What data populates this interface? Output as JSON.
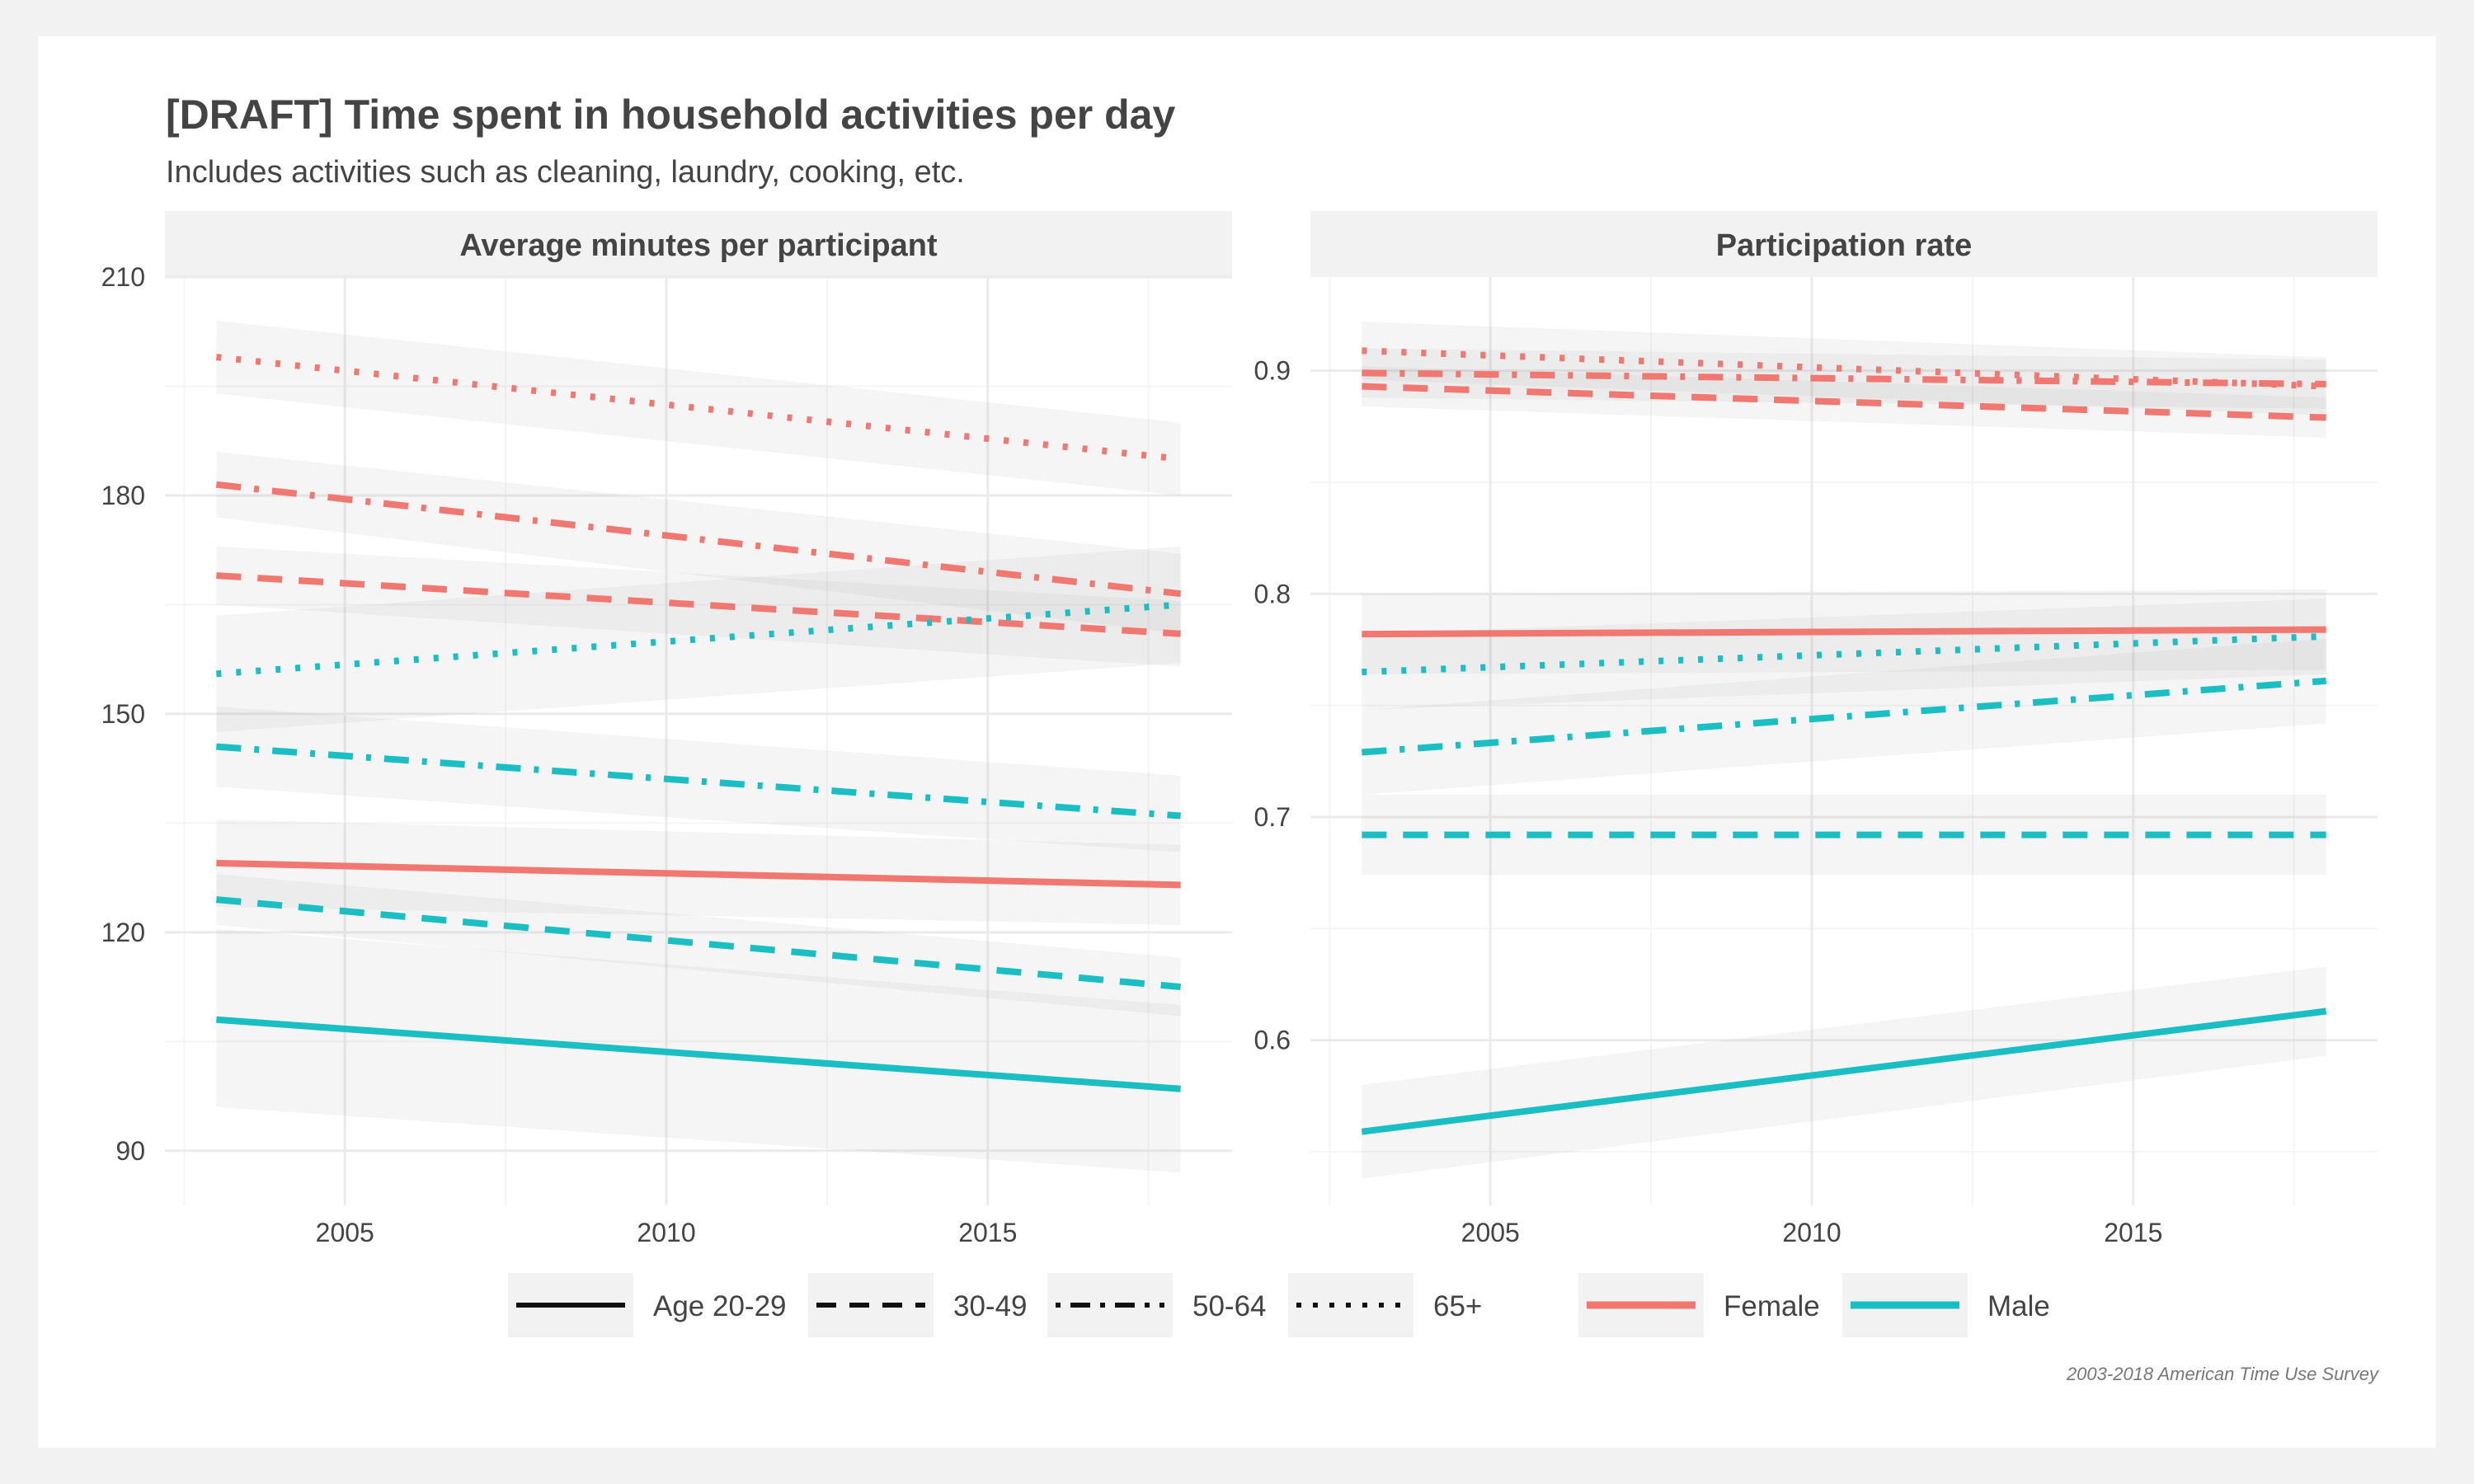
{
  "title": "[DRAFT] Time spent in household activities per day",
  "subtitle": "Includes activities such as cleaning, laundry, cooking, etc.",
  "caption": "2003-2018 American Time Use Survey",
  "colors": {
    "female": "#F07870",
    "male": "#1ABFC4",
    "ribbon": "#999999",
    "strip": "#f2f2f2",
    "grid": "#ebebeb"
  },
  "legend": {
    "linetype": [
      {
        "label": "Age 20-29",
        "dash": "solid"
      },
      {
        "label": "30-49",
        "dash": "dashed"
      },
      {
        "label": "50-64",
        "dash": "dotdash"
      },
      {
        "label": "65+",
        "dash": "dotted"
      }
    ],
    "colour": [
      {
        "label": "Female",
        "key": "female"
      },
      {
        "label": "Male",
        "key": "male"
      }
    ]
  },
  "chart_data": [
    {
      "type": "line",
      "panel_title": "Average minutes per participant",
      "x_ticks": [
        2005,
        2010,
        2015
      ],
      "y_ticks": [
        90,
        120,
        150,
        180,
        210
      ],
      "xlim": [
        2002.2,
        2018.8
      ],
      "ylim": [
        82.5,
        210
      ],
      "series": [
        {
          "sex": "Female",
          "age": "Age 20-29",
          "x": [
            2003,
            2018
          ],
          "y": [
            129.5,
            126.5
          ],
          "band": [
            [
              135.5,
              123.5
            ],
            [
              132.0,
              121.0
            ]
          ]
        },
        {
          "sex": "Female",
          "age": "30-49",
          "x": [
            2003,
            2018
          ],
          "y": [
            169.0,
            161.0
          ],
          "band": [
            [
              173.0,
              165.0
            ],
            [
              165.5,
              156.5
            ]
          ]
        },
        {
          "sex": "Female",
          "age": "50-64",
          "x": [
            2003,
            2018
          ],
          "y": [
            181.5,
            166.5
          ],
          "band": [
            [
              186.0,
              177.0
            ],
            [
              172.0,
              161.0
            ]
          ]
        },
        {
          "sex": "Female",
          "age": "65+",
          "x": [
            2003,
            2018
          ],
          "y": [
            199.0,
            185.0
          ],
          "band": [
            [
              204.0,
              194.0
            ],
            [
              190.0,
              180.0
            ]
          ]
        },
        {
          "sex": "Male",
          "age": "Age 20-29",
          "x": [
            2003,
            2018
          ],
          "y": [
            108.0,
            98.5
          ],
          "band": [
            [
              120.5,
              96.0
            ],
            [
              110.0,
              87.0
            ]
          ]
        },
        {
          "sex": "Male",
          "age": "30-49",
          "x": [
            2003,
            2018
          ],
          "y": [
            124.5,
            112.5
          ],
          "band": [
            [
              128.0,
              121.0
            ],
            [
              116.5,
              108.5
            ]
          ]
        },
        {
          "sex": "Male",
          "age": "50-64",
          "x": [
            2003,
            2018
          ],
          "y": [
            145.5,
            136.0
          ],
          "band": [
            [
              151.0,
              140.0
            ],
            [
              141.5,
              131.0
            ]
          ]
        },
        {
          "sex": "Male",
          "age": "65+",
          "x": [
            2003,
            2018
          ],
          "y": [
            155.5,
            165.0
          ],
          "band": [
            [
              163.5,
              147.5
            ],
            [
              173.0,
              157.0
            ]
          ]
        }
      ]
    },
    {
      "type": "line",
      "panel_title": "Participation rate",
      "x_ticks": [
        2005,
        2010,
        2015
      ],
      "y_ticks": [
        0.6,
        0.7,
        0.8,
        0.9
      ],
      "xlim": [
        2002.2,
        2018.8
      ],
      "ylim": [
        0.526,
        0.942
      ],
      "series": [
        {
          "sex": "Female",
          "age": "Age 20-29",
          "x": [
            2003,
            2018
          ],
          "y": [
            0.782,
            0.784
          ],
          "band": [
            [
              0.8,
              0.764
            ],
            [
              0.802,
              0.766
            ]
          ]
        },
        {
          "sex": "Female",
          "age": "30-49",
          "x": [
            2003,
            2018
          ],
          "y": [
            0.893,
            0.879
          ],
          "band": [
            [
              0.902,
              0.884
            ],
            [
              0.888,
              0.87
            ]
          ]
        },
        {
          "sex": "Female",
          "age": "50-64",
          "x": [
            2003,
            2018
          ],
          "y": [
            0.899,
            0.894
          ],
          "band": [
            [
              0.91,
              0.888
            ],
            [
              0.905,
              0.883
            ]
          ]
        },
        {
          "sex": "Female",
          "age": "65+",
          "x": [
            2003,
            2018
          ],
          "y": [
            0.909,
            0.893
          ],
          "band": [
            [
              0.922,
              0.896
            ],
            [
              0.906,
              0.88
            ]
          ]
        },
        {
          "sex": "Male",
          "age": "Age 20-29",
          "x": [
            2003,
            2018
          ],
          "y": [
            0.559,
            0.613
          ],
          "band": [
            [
              0.58,
              0.538
            ],
            [
              0.633,
              0.593
            ]
          ]
        },
        {
          "sex": "Male",
          "age": "30-49",
          "x": [
            2003,
            2018
          ],
          "y": [
            0.692,
            0.692
          ],
          "band": [
            [
              0.71,
              0.674
            ],
            [
              0.71,
              0.674
            ]
          ]
        },
        {
          "sex": "Male",
          "age": "50-64",
          "x": [
            2003,
            2018
          ],
          "y": [
            0.729,
            0.761
          ],
          "band": [
            [
              0.748,
              0.71
            ],
            [
              0.78,
              0.742
            ]
          ]
        },
        {
          "sex": "Male",
          "age": "65+",
          "x": [
            2003,
            2018
          ],
          "y": [
            0.765,
            0.781
          ],
          "band": [
            [
              0.782,
              0.748
            ],
            [
              0.798,
              0.764
            ]
          ]
        }
      ]
    }
  ]
}
